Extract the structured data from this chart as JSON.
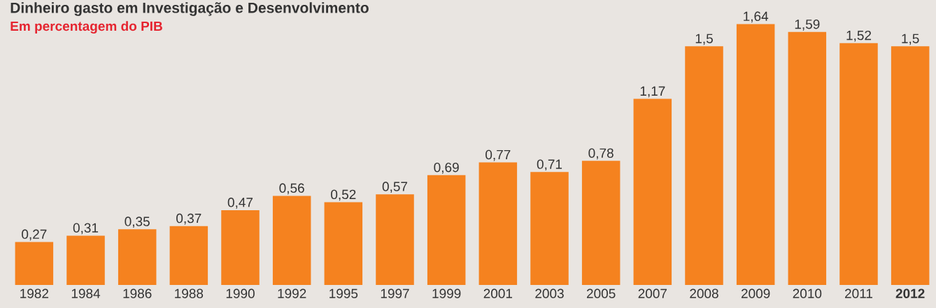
{
  "chart_data": {
    "type": "bar",
    "title": "Dinheiro gasto em Investigação e Desenvolvimento",
    "subtitle": "Em percentagem do PIB",
    "categories": [
      "1982",
      "1984",
      "1986",
      "1988",
      "1990",
      "1992",
      "1995",
      "1997",
      "1999",
      "2001",
      "2003",
      "2005",
      "2007",
      "2008",
      "2009",
      "2010",
      "2011",
      "**2012**"
    ],
    "values": [
      0.27,
      0.31,
      0.35,
      0.37,
      0.47,
      0.56,
      0.52,
      0.57,
      0.69,
      0.77,
      0.71,
      0.78,
      1.17,
      1.5,
      1.64,
      1.59,
      1.52,
      1.5
    ],
    "value_labels": [
      "0,27",
      "0,31",
      "0,35",
      "0,37",
      "0,47",
      "0,56",
      "0,52",
      "0,57",
      "0,69",
      "0,77",
      "0,71",
      "0,78",
      "1,17",
      "1,5",
      "1,64",
      "1,59",
      "1,52",
      "1,5"
    ],
    "color": "#f5821f"
  }
}
